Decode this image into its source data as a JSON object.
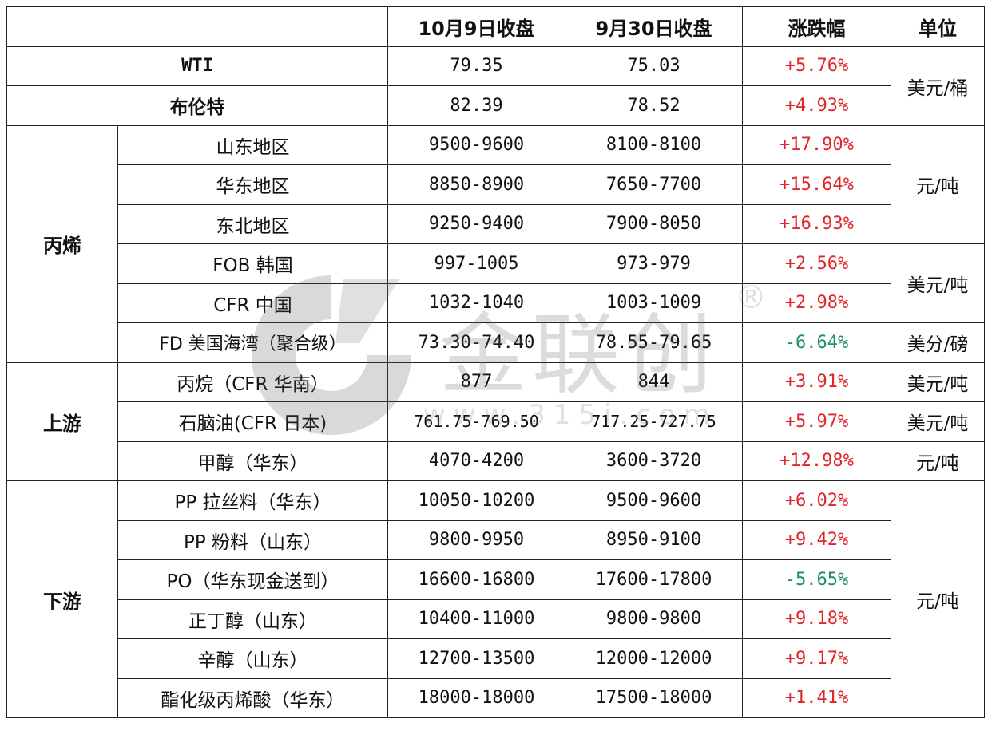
{
  "header": {
    "blank": "",
    "col1": "10月9日收盘",
    "col2": "9月30日收盘",
    "col3": "涨跌幅",
    "col4": "单位"
  },
  "crude": [
    {
      "name": "WTI",
      "oct9": "79.35",
      "sep30": "75.03",
      "change": "+5.76%"
    },
    {
      "name": "布伦特",
      "oct9": "82.39",
      "sep30": "78.52",
      "change": "+4.93%"
    }
  ],
  "crude_unit": "美元/桶",
  "propylene": {
    "category": "丙烯",
    "rows": [
      {
        "name": "山东地区",
        "oct9": "9500-9600",
        "sep30": "8100-8100",
        "change": "+17.90%"
      },
      {
        "name": "华东地区",
        "oct9": "8850-8900",
        "sep30": "7650-7700",
        "change": "+15.64%"
      },
      {
        "name": "东北地区",
        "oct9": "9250-9400",
        "sep30": "7900-8050",
        "change": "+16.93%"
      },
      {
        "name": "FOB 韩国",
        "oct9": "997-1005",
        "sep30": "973-979",
        "change": "+2.56%"
      },
      {
        "name": "CFR 中国",
        "oct9": "1032-1040",
        "sep30": "1003-1009",
        "change": "+2.98%"
      },
      {
        "name": "FD 美国海湾（聚合级）",
        "oct9": "73.30-74.40",
        "sep30": "78.55-79.65",
        "change": "-6.64%"
      }
    ],
    "unit_domestic": "元/吨",
    "unit_import": "美元/吨",
    "unit_us": "美分/磅"
  },
  "upstream": {
    "category": "上游",
    "rows": [
      {
        "name": "丙烷（CFR 华南）",
        "oct9": "877",
        "sep30": "844",
        "change": "+3.91%",
        "unit": "美元/吨"
      },
      {
        "name": "石脑油(CFR 日本)",
        "oct9": "761.75-769.50",
        "sep30": "717.25-727.75",
        "change": "+5.97%",
        "unit": "美元/吨"
      },
      {
        "name": "甲醇（华东）",
        "oct9": "4070-4200",
        "sep30": "3600-3720",
        "change": "+12.98%",
        "unit": "元/吨"
      }
    ]
  },
  "downstream": {
    "category": "下游",
    "rows": [
      {
        "name": "PP 拉丝料（华东）",
        "oct9": "10050-10200",
        "sep30": "9500-9600",
        "change": "+6.02%"
      },
      {
        "name": "PP 粉料（山东）",
        "oct9": "9800-9950",
        "sep30": "8950-9100",
        "change": "+9.42%"
      },
      {
        "name": "PO（华东现金送到）",
        "oct9": "16600-16800",
        "sep30": "17600-17800",
        "change": "-5.65%"
      },
      {
        "name": "正丁醇（山东）",
        "oct9": "10400-11000",
        "sep30": "9800-9800",
        "change": "+9.18%"
      },
      {
        "name": "辛醇（山东）",
        "oct9": "12700-13500",
        "sep30": "12000-12000",
        "change": "+9.17%"
      },
      {
        "name": "酯化级丙烯酸（华东）",
        "oct9": "18000-18000",
        "sep30": "17500-18000",
        "change": "+1.41%"
      }
    ],
    "unit": "元/吨"
  },
  "watermark": {
    "text": "金联创",
    "url": "www.315i.com",
    "mark": "®"
  },
  "colors": {
    "up": "#e0262a",
    "down": "#1f8f6a"
  }
}
